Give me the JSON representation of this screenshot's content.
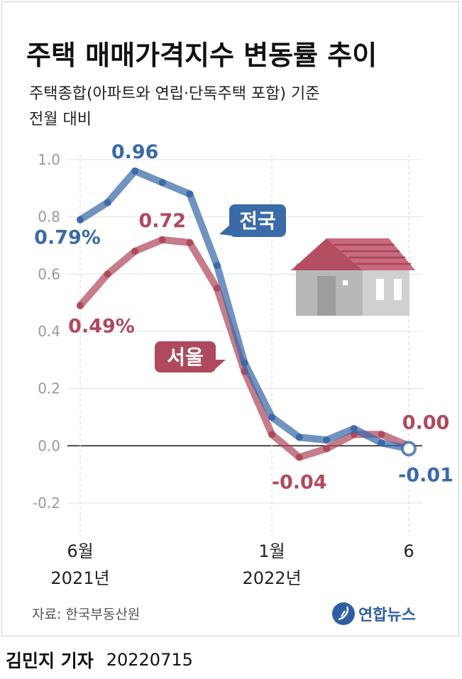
{
  "chart_data": {
    "type": "line",
    "title": "주택 매매가격지수 변동률 추이",
    "subtitle_line1": "주택종합(아파트와 연립·단독주택 포함) 기준",
    "subtitle_line2": "전월 대비",
    "ylim": [
      -0.2,
      1.0
    ],
    "yticks": [
      "1.0",
      "0.8",
      "0.6",
      "0.4",
      "0.2",
      "0.0",
      "-0.2"
    ],
    "ytick_values": [
      1.0,
      0.8,
      0.6,
      0.4,
      0.2,
      0.0,
      -0.2
    ],
    "months": [
      "2021-06",
      "2021-07",
      "2021-08",
      "2021-09",
      "2021-10",
      "2021-11",
      "2021-12",
      "2022-01",
      "2022-02",
      "2022-03",
      "2022-04",
      "2022-05",
      "2022-06"
    ],
    "xlabels": [
      {
        "month_index": 0,
        "line1": "6월",
        "line2": "2021년"
      },
      {
        "month_index": 7,
        "line1": "1월",
        "line2": "2022년"
      },
      {
        "month_index": 12,
        "line1": "6",
        "line2": ""
      }
    ],
    "grid": true,
    "series": [
      {
        "name": "전국",
        "color": "#3a6aa7",
        "values": [
          0.79,
          0.85,
          0.96,
          0.92,
          0.88,
          0.63,
          0.29,
          0.1,
          0.03,
          0.02,
          0.06,
          0.01,
          -0.01
        ]
      },
      {
        "name": "서울",
        "color": "#b0495d",
        "values": [
          0.49,
          0.6,
          0.68,
          0.72,
          0.71,
          0.55,
          0.26,
          0.04,
          -0.04,
          -0.01,
          0.04,
          0.04,
          0.0
        ]
      }
    ],
    "annotations": [
      {
        "series": 0,
        "month_index": 0,
        "text": "0.79%"
      },
      {
        "series": 0,
        "month_index": 2,
        "text": "0.96"
      },
      {
        "series": 0,
        "month_index": 12,
        "text": "-0.01"
      },
      {
        "series": 1,
        "month_index": 0,
        "text": "0.49%"
      },
      {
        "series": 1,
        "month_index": 3,
        "text": "0.72"
      },
      {
        "series": 1,
        "month_index": 8,
        "text": "-0.04"
      },
      {
        "series": 1,
        "month_index": 12,
        "text": "0.00"
      }
    ],
    "source": "자료: 한국부동산원",
    "agency": "연합뉴스"
  },
  "footer": {
    "author": "김민지 기자",
    "date": "20220715"
  }
}
